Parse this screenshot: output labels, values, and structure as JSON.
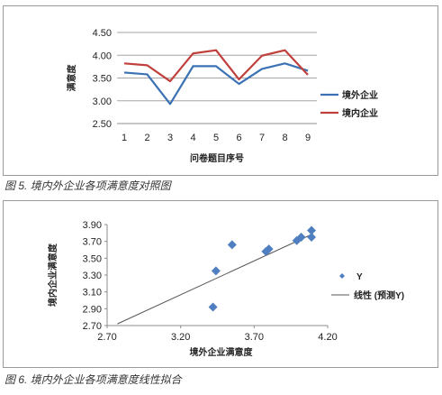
{
  "chart_data": [
    {
      "type": "line",
      "title": "",
      "xlabel": "问卷题目序号",
      "ylabel": "满意度",
      "categories": [
        "1",
        "2",
        "3",
        "4",
        "5",
        "6",
        "7",
        "8",
        "9"
      ],
      "ylim": [
        2.5,
        4.5
      ],
      "yticks": [
        "2.50",
        "3.00",
        "3.50",
        "4.00",
        "4.50"
      ],
      "grid": true,
      "legend": "right",
      "series": [
        {
          "name": "境外企业",
          "color": "#3b72b4",
          "values": [
            3.62,
            3.58,
            2.93,
            3.76,
            3.76,
            3.37,
            3.7,
            3.82,
            3.66
          ]
        },
        {
          "name": "境内企业",
          "color": "#c0403c",
          "values": [
            3.82,
            3.78,
            3.43,
            4.04,
            4.11,
            3.47,
            3.99,
            4.11,
            3.57
          ]
        }
      ]
    },
    {
      "type": "scatter",
      "title": "",
      "xlabel": "境外企业满意度",
      "ylabel": "境内企业满意度",
      "xlim": [
        2.7,
        4.2
      ],
      "ylim": [
        2.7,
        3.9
      ],
      "xticks": [
        "2.70",
        "3.20",
        "3.70",
        "4.20"
      ],
      "yticks": [
        "2.70",
        "2.90",
        "3.10",
        "3.30",
        "3.50",
        "3.70",
        "3.90"
      ],
      "legend": "right",
      "series": [
        {
          "name": "Y",
          "color": "#4f7fc0",
          "points": [
            [
              3.42,
              2.92
            ],
            [
              3.44,
              3.35
            ],
            [
              3.55,
              3.66
            ],
            [
              3.78,
              3.58
            ],
            [
              3.8,
              3.61
            ],
            [
              3.99,
              3.71
            ],
            [
              4.02,
              3.75
            ],
            [
              4.09,
              3.75
            ],
            [
              4.09,
              3.83
            ]
          ]
        },
        {
          "name": "线性 (预测Y)",
          "type": "trendline",
          "color": "#555555",
          "points": [
            [
              2.77,
              2.72
            ],
            [
              4.1,
              3.79
            ]
          ]
        }
      ]
    }
  ],
  "captions": {
    "fig5": "图 5. 境内外企业各项满意度对照图",
    "fig6": "图 6. 境内外企业各项满意度线性拟合"
  }
}
